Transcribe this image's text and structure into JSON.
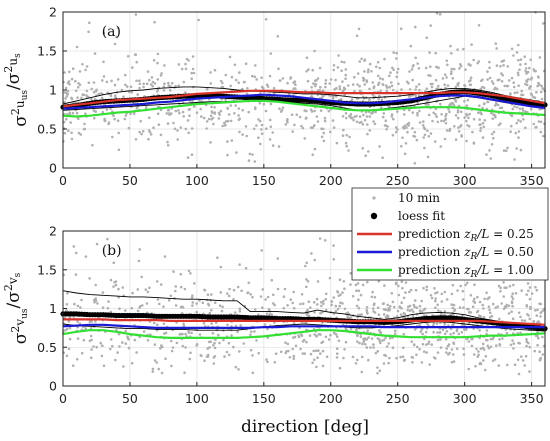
{
  "figure": {
    "xlabel": "direction [deg]",
    "legend": {
      "placement": "upper-right of panel (b)",
      "items": [
        {
          "label": "10 min",
          "marker": "dot",
          "color": "#b0b0b0"
        },
        {
          "label": "loess fit",
          "marker": "dot",
          "color": "#000000"
        },
        {
          "label": "prediction z_R/L = 0.25",
          "marker": "line",
          "color": "#d9332a"
        },
        {
          "label": "prediction z_R/L = 0.50",
          "marker": "line",
          "color": "#1a1ad6"
        },
        {
          "label": "prediction z_R/L = 1.00",
          "marker": "line",
          "color": "#33e033"
        }
      ]
    }
  },
  "chart_data": [
    {
      "type": "scatter",
      "panel_label": "(a)",
      "ylabel": "σ²_{u_us} / σ²_{u_s}",
      "xlim": [
        0,
        360
      ],
      "ylim": [
        0,
        2
      ],
      "xticks": [
        0,
        50,
        100,
        150,
        200,
        250,
        300,
        350
      ],
      "yticks": [
        0,
        0.5,
        1,
        1.5,
        2
      ],
      "grid": true,
      "x": [
        0,
        10,
        20,
        30,
        40,
        50,
        60,
        70,
        80,
        90,
        100,
        110,
        120,
        130,
        140,
        150,
        160,
        170,
        180,
        190,
        200,
        210,
        220,
        230,
        240,
        250,
        260,
        270,
        280,
        290,
        300,
        310,
        320,
        330,
        340,
        350,
        360
      ],
      "series": [
        {
          "name": "loess fit",
          "color": "#000000",
          "values": [
            0.78,
            0.8,
            0.83,
            0.85,
            0.86,
            0.87,
            0.88,
            0.9,
            0.91,
            0.92,
            0.93,
            0.93,
            0.92,
            0.91,
            0.9,
            0.89,
            0.88,
            0.87,
            0.87,
            0.86,
            0.84,
            0.83,
            0.82,
            0.82,
            0.83,
            0.84,
            0.86,
            0.9,
            0.94,
            0.97,
            0.98,
            0.96,
            0.93,
            0.89,
            0.86,
            0.83,
            0.81
          ]
        },
        {
          "name": "upper band",
          "color": "#000000",
          "values": [
            0.82,
            0.86,
            0.9,
            0.94,
            0.97,
            0.99,
            1.0,
            1.02,
            1.03,
            1.04,
            1.04,
            1.03,
            1.02,
            1.0,
            0.99,
            0.98,
            0.97,
            0.96,
            0.95,
            0.95,
            0.94,
            0.92,
            0.9,
            0.9,
            0.91,
            0.92,
            0.94,
            0.97,
            1.0,
            1.02,
            1.02,
            1.0,
            0.97,
            0.93,
            0.9,
            0.87,
            0.84
          ]
        },
        {
          "name": "lower band",
          "color": "#000000",
          "values": [
            0.74,
            0.75,
            0.76,
            0.77,
            0.78,
            0.79,
            0.8,
            0.81,
            0.82,
            0.83,
            0.84,
            0.85,
            0.85,
            0.86,
            0.86,
            0.86,
            0.85,
            0.84,
            0.83,
            0.82,
            0.8,
            0.77,
            0.74,
            0.74,
            0.76,
            0.78,
            0.8,
            0.83,
            0.86,
            0.89,
            0.92,
            0.9,
            0.87,
            0.84,
            0.81,
            0.79,
            0.78
          ]
        },
        {
          "name": "prediction z_R/L = 0.25",
          "color": "#d9332a",
          "values": [
            0.79,
            0.81,
            0.83,
            0.85,
            0.87,
            0.88,
            0.89,
            0.9,
            0.91,
            0.93,
            0.95,
            0.96,
            0.97,
            0.98,
            0.99,
            0.99,
            0.99,
            0.98,
            0.97,
            0.97,
            0.96,
            0.96,
            0.96,
            0.96,
            0.96,
            0.96,
            0.96,
            0.96,
            0.96,
            0.97,
            0.97,
            0.96,
            0.94,
            0.92,
            0.89,
            0.86,
            0.83
          ]
        },
        {
          "name": "prediction z_R/L = 0.50",
          "color": "#1a1ad6",
          "values": [
            0.76,
            0.77,
            0.78,
            0.79,
            0.8,
            0.81,
            0.82,
            0.84,
            0.85,
            0.87,
            0.89,
            0.9,
            0.91,
            0.92,
            0.93,
            0.94,
            0.93,
            0.92,
            0.9,
            0.88,
            0.86,
            0.84,
            0.83,
            0.83,
            0.84,
            0.86,
            0.88,
            0.9,
            0.92,
            0.93,
            0.93,
            0.91,
            0.88,
            0.85,
            0.82,
            0.79,
            0.77
          ]
        },
        {
          "name": "prediction z_R/L = 1.00",
          "color": "#33e033",
          "values": [
            0.67,
            0.66,
            0.67,
            0.69,
            0.71,
            0.72,
            0.74,
            0.76,
            0.78,
            0.8,
            0.82,
            0.83,
            0.84,
            0.85,
            0.86,
            0.86,
            0.85,
            0.83,
            0.81,
            0.79,
            0.77,
            0.75,
            0.74,
            0.74,
            0.75,
            0.76,
            0.77,
            0.78,
            0.78,
            0.78,
            0.77,
            0.75,
            0.73,
            0.71,
            0.7,
            0.69,
            0.68
          ]
        }
      ],
      "scatter": {
        "name": "10 min",
        "color": "#b0b0b0",
        "count": 1200,
        "mean": 0.85,
        "spread": 0.28,
        "range": [
          0.05,
          2.0
        ]
      }
    },
    {
      "type": "scatter",
      "panel_label": "(b)",
      "ylabel": "σ²_{v_us} / σ²_{v_s}",
      "xlim": [
        0,
        360
      ],
      "ylim": [
        0,
        2
      ],
      "xticks": [
        0,
        50,
        100,
        150,
        200,
        250,
        300,
        350
      ],
      "yticks": [
        0,
        0.5,
        1,
        1.5,
        2
      ],
      "grid": true,
      "x": [
        0,
        10,
        20,
        30,
        40,
        50,
        60,
        70,
        80,
        90,
        100,
        110,
        120,
        130,
        140,
        150,
        160,
        170,
        180,
        190,
        200,
        210,
        220,
        230,
        240,
        250,
        260,
        270,
        280,
        290,
        300,
        310,
        320,
        330,
        340,
        350,
        360
      ],
      "series": [
        {
          "name": "loess fit",
          "color": "#000000",
          "values": [
            0.93,
            0.93,
            0.92,
            0.92,
            0.91,
            0.91,
            0.91,
            0.9,
            0.9,
            0.9,
            0.9,
            0.89,
            0.89,
            0.89,
            0.88,
            0.88,
            0.87,
            0.87,
            0.86,
            0.86,
            0.85,
            0.84,
            0.83,
            0.83,
            0.82,
            0.83,
            0.85,
            0.87,
            0.88,
            0.88,
            0.86,
            0.84,
            0.82,
            0.8,
            0.78,
            0.76,
            0.74
          ]
        },
        {
          "name": "upper band",
          "color": "#000000",
          "values": [
            1.23,
            1.2,
            1.18,
            1.17,
            1.16,
            1.15,
            1.15,
            1.14,
            1.13,
            1.12,
            1.12,
            1.11,
            1.1,
            1.1,
            0.96,
            0.96,
            0.96,
            0.95,
            0.94,
            0.98,
            0.95,
            0.93,
            0.9,
            0.88,
            0.86,
            0.88,
            0.92,
            0.94,
            0.95,
            0.94,
            0.92,
            0.88,
            0.85,
            0.82,
            0.79,
            0.77,
            0.75
          ]
        },
        {
          "name": "lower band",
          "color": "#000000",
          "values": [
            0.8,
            0.78,
            0.77,
            0.76,
            0.75,
            0.74,
            0.74,
            0.73,
            0.73,
            0.73,
            0.72,
            0.72,
            0.72,
            0.72,
            0.74,
            0.76,
            0.78,
            0.79,
            0.8,
            0.79,
            0.78,
            0.76,
            0.75,
            0.75,
            0.76,
            0.78,
            0.8,
            0.82,
            0.83,
            0.82,
            0.8,
            0.78,
            0.76,
            0.74,
            0.73,
            0.72,
            0.71
          ]
        },
        {
          "name": "prediction z_R/L = 0.25",
          "color": "#d9332a",
          "values": [
            0.86,
            0.86,
            0.86,
            0.86,
            0.85,
            0.85,
            0.85,
            0.85,
            0.84,
            0.84,
            0.84,
            0.84,
            0.84,
            0.84,
            0.84,
            0.84,
            0.84,
            0.84,
            0.84,
            0.84,
            0.84,
            0.84,
            0.84,
            0.84,
            0.84,
            0.84,
            0.84,
            0.84,
            0.84,
            0.84,
            0.84,
            0.84,
            0.83,
            0.82,
            0.81,
            0.8,
            0.79
          ]
        },
        {
          "name": "prediction z_R/L = 0.50",
          "color": "#1a1ad6",
          "values": [
            0.77,
            0.78,
            0.79,
            0.79,
            0.78,
            0.77,
            0.76,
            0.75,
            0.75,
            0.75,
            0.75,
            0.75,
            0.75,
            0.75,
            0.75,
            0.76,
            0.76,
            0.77,
            0.77,
            0.77,
            0.77,
            0.77,
            0.77,
            0.77,
            0.76,
            0.76,
            0.76,
            0.76,
            0.76,
            0.76,
            0.76,
            0.76,
            0.76,
            0.76,
            0.76,
            0.76,
            0.76
          ]
        },
        {
          "name": "prediction z_R/L = 1.00",
          "color": "#33e033",
          "values": [
            0.67,
            0.7,
            0.72,
            0.72,
            0.7,
            0.67,
            0.65,
            0.63,
            0.62,
            0.62,
            0.62,
            0.62,
            0.62,
            0.62,
            0.63,
            0.64,
            0.66,
            0.68,
            0.7,
            0.72,
            0.72,
            0.71,
            0.69,
            0.67,
            0.65,
            0.64,
            0.63,
            0.63,
            0.63,
            0.63,
            0.63,
            0.64,
            0.65,
            0.65,
            0.66,
            0.67,
            0.68
          ]
        }
      ],
      "scatter": {
        "name": "10 min",
        "color": "#b0b0b0",
        "count": 1200,
        "mean": 0.82,
        "spread": 0.3,
        "range": [
          0.15,
          2.0
        ]
      }
    }
  ]
}
